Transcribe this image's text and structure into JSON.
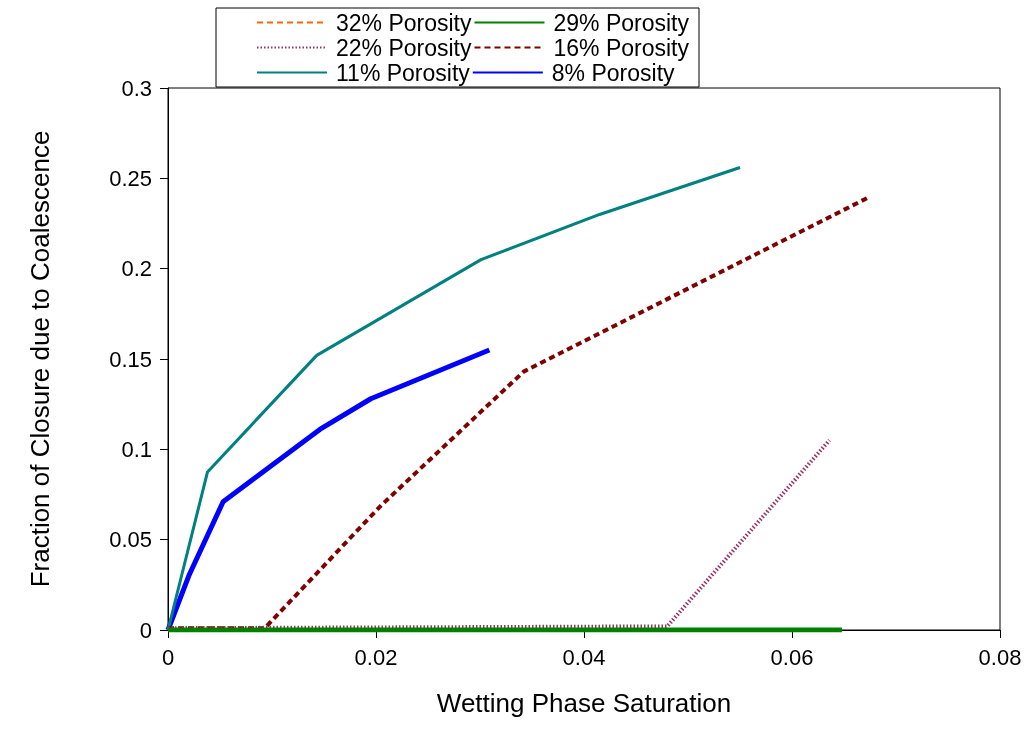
{
  "chart_data": {
    "type": "line",
    "xlabel": "Wetting Phase Saturation",
    "ylabel": "Fraction of Closure due to Coalescence",
    "xlim": [
      0,
      0.08
    ],
    "xticks": [
      0,
      0.02,
      0.04,
      0.06,
      0.08
    ],
    "ylim": [
      0,
      0.3
    ],
    "yticks": [
      0,
      0.05,
      0.1,
      0.15,
      0.2,
      0.25,
      0.3
    ],
    "grid": false,
    "legend": "top",
    "marker": "none",
    "series": [
      {
        "name": "32% Porosity",
        "color": "#ff6600",
        "line_style": "dashed"
      },
      {
        "name": "29% Porosity",
        "color": "#008000",
        "line_style": "solid",
        "x": [
          0,
          0.0648
        ],
        "values": [
          0,
          0
        ]
      },
      {
        "name": "22% Porosity",
        "color": "#993366",
        "line_style": "dotted",
        "x": [
          0,
          0.048,
          0.0636
        ],
        "values": [
          0.001,
          0.002,
          0.105
        ]
      },
      {
        "name": "16% Porosity",
        "color": "#800000",
        "line_style": "dashed",
        "x": [
          0,
          0.0093,
          0.0205,
          0.0342,
          0.0672
        ],
        "values": [
          0.001,
          0.001,
          0.069,
          0.143,
          0.239
        ]
      },
      {
        "name": "11% Porosity",
        "color": "#008080",
        "line_style": "solid",
        "x": [
          0,
          0.0038,
          0.0143,
          0.0301,
          0.0415,
          0.055
        ],
        "values": [
          0,
          0.0875,
          0.152,
          0.205,
          0.23,
          0.256
        ]
      },
      {
        "name": "8% Porosity",
        "color": "#0000ff",
        "line_style": "solid",
        "x": [
          0,
          0.002,
          0.0053,
          0.0146,
          0.0195,
          0.0309
        ],
        "values": [
          0,
          0.03,
          0.071,
          0.111,
          0.128,
          0.155
        ]
      }
    ]
  }
}
